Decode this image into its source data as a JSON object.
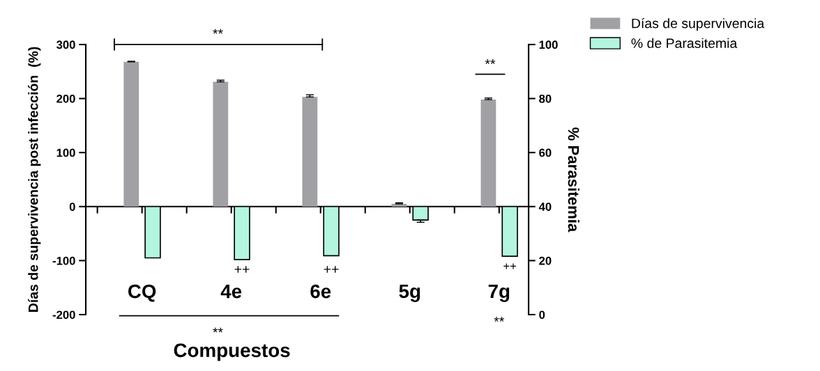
{
  "chart_data": {
    "type": "bar",
    "xlabel": "Compuestos",
    "ylabel": "Días de supervivencia post infección  (%)",
    "y2label": "% Parasitemia",
    "categories": [
      "CQ",
      "4e",
      "6e",
      "5g",
      "7g"
    ],
    "series": [
      {
        "name": "Días de supervivencia",
        "color": "#a0a0a5",
        "values": [
          268,
          231,
          203,
          5,
          198
        ],
        "errors": [
          1,
          3,
          4,
          2,
          3
        ]
      },
      {
        "name": "% de Parasitemia",
        "color": "#b3f5df",
        "axis": "y2",
        "base": [
          40,
          40,
          40,
          40,
          40
        ],
        "values": [
          -19,
          -19.6,
          -18.2,
          -5,
          -18.4
        ],
        "errors": [
          null,
          null,
          null,
          0.8,
          null
        ]
      }
    ],
    "ylim": [
      -200,
      300
    ],
    "yticks": [
      -200,
      -100,
      0,
      100,
      200,
      300
    ],
    "y2lim": [
      0,
      100
    ],
    "y2ticks": [
      0,
      20,
      40,
      60,
      80,
      100
    ],
    "annotations": [
      "**",
      "**",
      "++",
      "++",
      "++",
      "**",
      "**"
    ],
    "legend": "top right"
  }
}
